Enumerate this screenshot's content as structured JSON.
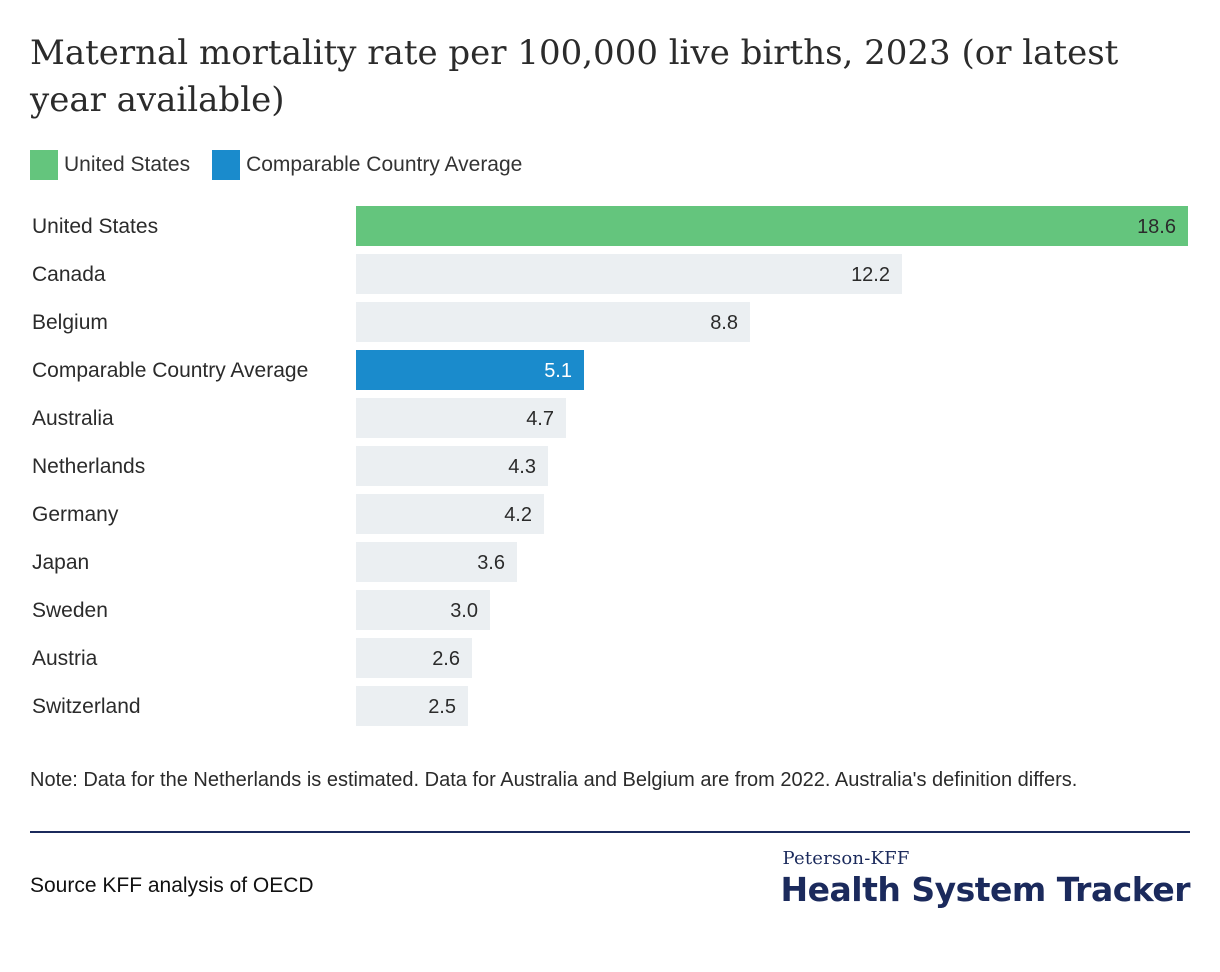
{
  "chart_data": {
    "type": "bar",
    "orientation": "horizontal",
    "title": "Maternal mortality rate per 100,000 live births, 2023 (or latest year available)",
    "categories": [
      "United States",
      "Canada",
      "Belgium",
      "Comparable Country Average",
      "Australia",
      "Netherlands",
      "Germany",
      "Japan",
      "Sweden",
      "Austria",
      "Switzerland"
    ],
    "values": [
      18.6,
      12.2,
      8.8,
      5.1,
      4.7,
      4.3,
      4.2,
      3.6,
      3.0,
      2.6,
      2.5
    ],
    "value_labels": [
      "18.6",
      "12.2",
      "8.8",
      "5.1",
      "4.7",
      "4.3",
      "4.2",
      "3.6",
      "3.0",
      "2.6",
      "2.5"
    ],
    "highlight": {
      "United States": "#64c57d",
      "Comparable Country Average": "#1a8bcc"
    },
    "default_bar_color": "#ebeff2",
    "xlim": [
      0,
      18.6
    ],
    "grid": false,
    "legend": {
      "placement": "top-left",
      "entries": [
        {
          "label": "United States",
          "color": "#64c57d"
        },
        {
          "label": "Comparable Country Average",
          "color": "#1a8bcc"
        }
      ]
    }
  },
  "note": "Note: Data for the Netherlands is estimated. Data for Australia and Belgium are from 2022. Australia's definition differs.",
  "source": "Source KFF analysis of OECD",
  "brand": {
    "small": "Peterson-KFF",
    "big": "Health System Tracker",
    "color": "#1b2a5c"
  }
}
